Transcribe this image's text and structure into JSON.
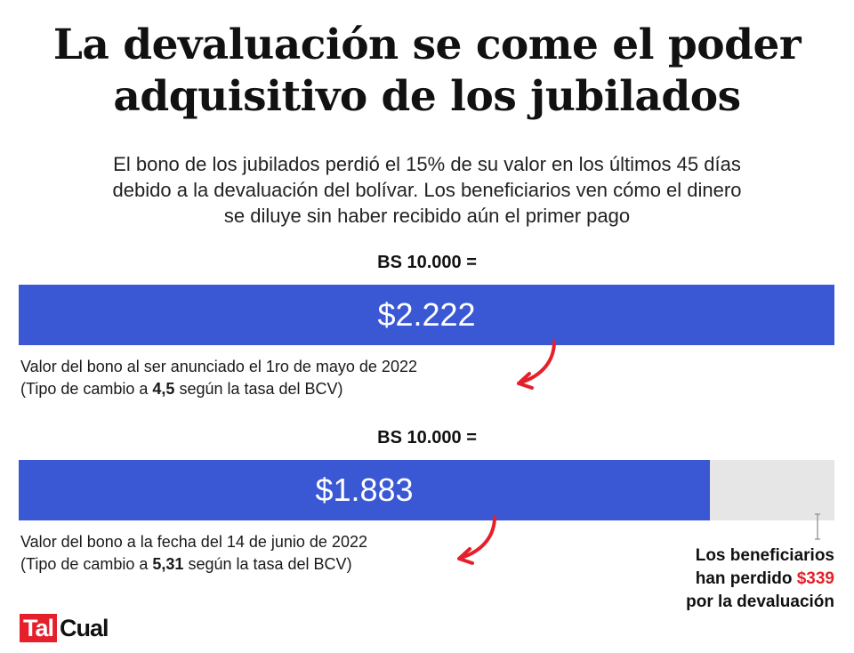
{
  "header": {
    "title_line1": "La devaluación se come el poder",
    "title_line2": "adquisitivo de los jubilados",
    "subtitle_line1": "El bono de los jubilados perdió el 15% de su valor en los últimos 45 días",
    "subtitle_line2": "debido a la devaluación del bolívar. Los beneficiarios ven cómo el dinero",
    "subtitle_line3": "se diluye sin haber recibido aún el primer pago"
  },
  "chart_data": {
    "type": "bar",
    "orientation": "horizontal",
    "max_value": 2222,
    "series": [
      {
        "label": "BS 10.000 =",
        "value": 2222,
        "value_text": "$2.222",
        "caption_line1": "Valor del bono al ser anunciado el 1ro de mayo de 2022",
        "caption_prefix": "(Tipo de cambio a ",
        "rate": "4,5",
        "caption_suffix": " según la tasa del BCV)"
      },
      {
        "label": "BS 10.000 =",
        "value": 1883,
        "value_text": "$1.883",
        "caption_line1": "Valor del bono a la fecha del 14 de junio de 2022",
        "caption_prefix": "(Tipo de cambio a ",
        "rate": "5,31",
        "caption_suffix": " según la tasa del BCV)"
      }
    ],
    "colors": {
      "bar": "#3b58d4",
      "track": "#e6e6e6",
      "accent": "#e5202a"
    }
  },
  "loss_note": {
    "line1": "Los beneficiarios",
    "line2_prefix": "han perdido ",
    "amount": "$339",
    "line3": "por la devaluación"
  },
  "logo": {
    "part1": "Tal",
    "part2": "Cual"
  }
}
